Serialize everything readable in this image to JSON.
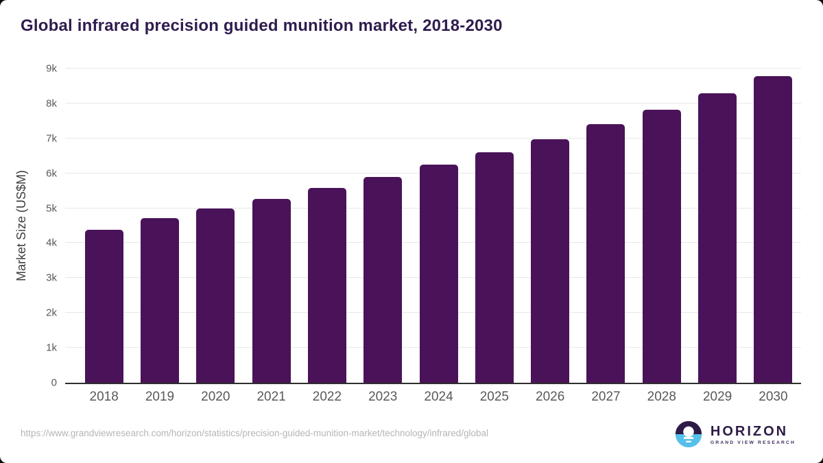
{
  "title": "Global infrared precision guided munition market, 2018-2030",
  "footer": {
    "source_url": "https://www.grandviewresearch.com/horizon/statistics/precision-guided-munition-market/technology/infrared/global",
    "logo": {
      "name": "HORIZON",
      "subtitle": "GRAND VIEW RESEARCH"
    }
  },
  "colors": {
    "bar": "#4a1259",
    "title": "#2f1c4e",
    "axis_label": "#3d3d3d",
    "tick": "#595959",
    "grid": "#e8e8e8",
    "baseline": "#2e2e2e",
    "url": "#b5b5b5",
    "logo_purple": "#2e1a47",
    "logo_blue": "#55c0ea"
  },
  "chart_data": {
    "type": "bar",
    "title": "Global infrared precision guided munition market, 2018-2030",
    "categories": [
      "2018",
      "2019",
      "2020",
      "2021",
      "2022",
      "2023",
      "2024",
      "2025",
      "2026",
      "2027",
      "2028",
      "2029",
      "2030"
    ],
    "values": [
      4380,
      4720,
      5000,
      5270,
      5590,
      5900,
      6240,
      6600,
      6980,
      7400,
      7820,
      8300,
      8790
    ],
    "xlabel": "",
    "ylabel": "Market Size (US$M)",
    "ylim": [
      0,
      9000
    ],
    "ytick_interval": 1000,
    "ytick_labels": [
      "0",
      "1k",
      "2k",
      "3k",
      "4k",
      "5k",
      "6k",
      "7k",
      "8k",
      "9k"
    ],
    "grid": true,
    "legend": false,
    "bar_color": "#4a1259"
  }
}
